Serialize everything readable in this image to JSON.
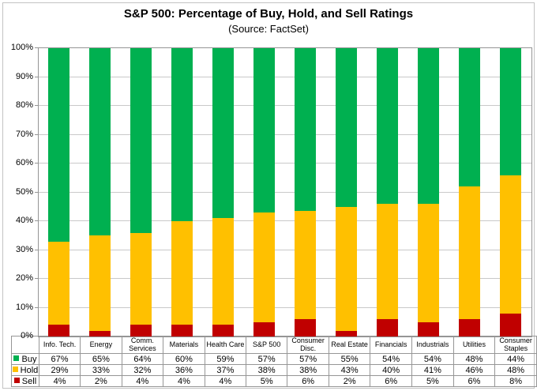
{
  "chart_data": {
    "type": "bar",
    "stacked": true,
    "percent_stacked": true,
    "title": "S&P 500: Percentage of Buy, Hold, and Sell Ratings",
    "subtitle": "(Source: FactSet)",
    "categories": [
      "Info. Tech.",
      "Energy",
      "Comm. Services",
      "Materials",
      "Health Care",
      "S&P 500",
      "Consumer Disc.",
      "Real Estate",
      "Financials",
      "Industrials",
      "Utilities",
      "Consumer Staples"
    ],
    "series": [
      {
        "name": "Buy",
        "color": "#00B050",
        "values": [
          67,
          65,
          64,
          60,
          59,
          57,
          57,
          55,
          54,
          54,
          48,
          44
        ]
      },
      {
        "name": "Hold",
        "color": "#FFC000",
        "values": [
          29,
          33,
          32,
          36,
          37,
          38,
          38,
          43,
          40,
          41,
          46,
          48
        ]
      },
      {
        "name": "Sell",
        "color": "#C00000",
        "values": [
          4,
          2,
          4,
          4,
          4,
          5,
          6,
          2,
          6,
          5,
          6,
          8
        ]
      }
    ],
    "stack_order_bottom_to_top": [
      "Sell",
      "Hold",
      "Buy"
    ],
    "ylim": [
      0,
      100
    ],
    "yticks": [
      "0%",
      "10%",
      "20%",
      "30%",
      "40%",
      "50%",
      "60%",
      "70%",
      "80%",
      "90%",
      "100%"
    ],
    "grid": true,
    "legend_position": "table-left"
  },
  "table": {
    "rows": [
      {
        "label": "Buy",
        "swatch": "#00B050",
        "cells": [
          "67%",
          "65%",
          "64%",
          "60%",
          "59%",
          "57%",
          "57%",
          "55%",
          "54%",
          "54%",
          "48%",
          "44%"
        ]
      },
      {
        "label": "Hold",
        "swatch": "#FFC000",
        "cells": [
          "29%",
          "33%",
          "32%",
          "36%",
          "37%",
          "38%",
          "38%",
          "43%",
          "40%",
          "41%",
          "46%",
          "48%"
        ]
      },
      {
        "label": "Sell",
        "swatch": "#C00000",
        "cells": [
          "4%",
          "2%",
          "4%",
          "4%",
          "4%",
          "5%",
          "6%",
          "2%",
          "6%",
          "5%",
          "6%",
          "8%"
        ]
      }
    ]
  },
  "colors": {
    "buy": "#00B050",
    "hold": "#FFC000",
    "sell": "#C00000",
    "gridline": "#C9C9C9",
    "axis": "#959595",
    "table_border": "#969696",
    "frame_border": "#C3C3C3"
  }
}
